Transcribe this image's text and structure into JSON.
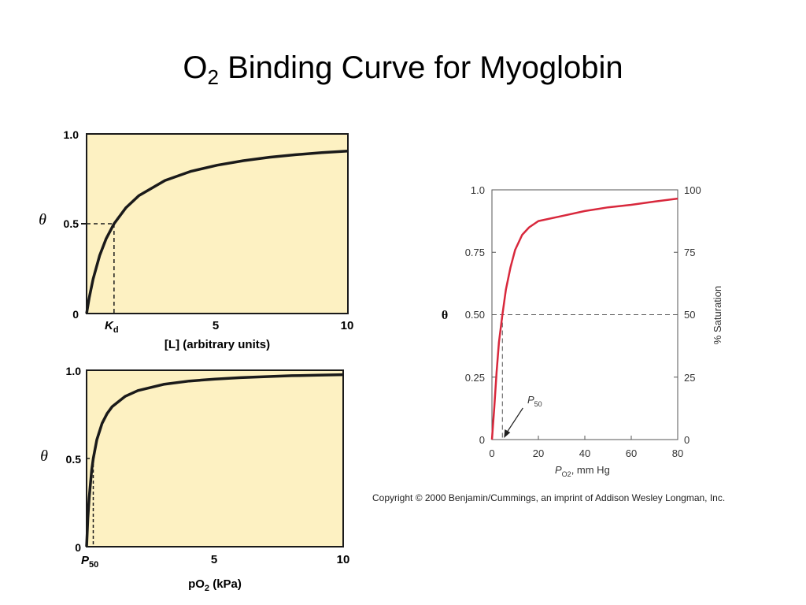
{
  "slide": {
    "title_main": "O",
    "title_sub": "2",
    "title_rest": " Binding Curve for Myoglobin",
    "copyright": "Copyright © 2000 Benjamin/Cummings, an imprint of Addison Wesley Longman, Inc."
  },
  "chart_data": [
    {
      "type": "line",
      "title": "",
      "ylabel": "θ",
      "xlabel": "[L] (arbitrary units)",
      "xlim": [
        0,
        10
      ],
      "ylim": [
        0,
        1
      ],
      "x_ticks": [
        0,
        5,
        10
      ],
      "x_tick_labels": [
        "",
        "5",
        "10"
      ],
      "y_tick_labels": [
        "0",
        "0.5",
        "1.0"
      ],
      "kd_label": "K",
      "kd_sub": "d",
      "Kd": 1.05,
      "background": "#fdf1c2",
      "line_color": "#1a1a1a",
      "series": [
        {
          "x": [
            0,
            0.1,
            0.25,
            0.5,
            0.75,
            1.05,
            1.5,
            2,
            3,
            4,
            5,
            6,
            7,
            8,
            9,
            10
          ],
          "y": [
            0,
            0.087,
            0.192,
            0.323,
            0.417,
            0.5,
            0.588,
            0.656,
            0.741,
            0.792,
            0.826,
            0.851,
            0.87,
            0.884,
            0.896,
            0.905
          ]
        }
      ]
    },
    {
      "type": "line",
      "title": "",
      "ylabel": "θ",
      "xlabel_main": "pO",
      "xlabel_sub": "2",
      "xlabel_rest": " (kPa)",
      "xlim": [
        0,
        10
      ],
      "ylim": [
        0,
        1
      ],
      "x_ticks": [
        0,
        5,
        10
      ],
      "x_tick_labels": [
        "",
        "5",
        "10"
      ],
      "y_tick_labels": [
        "0",
        "0.5",
        "1.0"
      ],
      "p50_label": "P",
      "p50_sub": "50",
      "P50": 0.26,
      "background": "#fdf1c2",
      "line_color": "#1a1a1a",
      "series": [
        {
          "x": [
            0,
            0.05,
            0.1,
            0.2,
            0.26,
            0.4,
            0.6,
            0.8,
            1,
            1.5,
            2,
            3,
            4,
            5,
            6,
            7,
            8,
            9,
            10
          ],
          "y": [
            0,
            0.161,
            0.278,
            0.435,
            0.5,
            0.606,
            0.698,
            0.755,
            0.794,
            0.852,
            0.885,
            0.92,
            0.939,
            0.95,
            0.958,
            0.964,
            0.969,
            0.972,
            0.975
          ]
        }
      ]
    },
    {
      "type": "line",
      "title": "",
      "ylabel": "θ",
      "ylabel_right": "% Saturation",
      "xlabel_main": "P",
      "xlabel_sub": "O2",
      "xlabel_rest": ", mm Hg",
      "xlim": [
        0,
        80
      ],
      "ylim": [
        0,
        1
      ],
      "x_ticks": [
        0,
        20,
        40,
        60,
        80
      ],
      "x_tick_labels": [
        "0",
        "20",
        "40",
        "60",
        "80"
      ],
      "y_ticks": [
        0,
        0.25,
        0.5,
        0.75,
        1.0
      ],
      "y_tick_labels": [
        "0",
        "0.25",
        "0.50",
        "0.75",
        "1.0"
      ],
      "y_right_tick_labels": [
        "0",
        "25",
        "50",
        "75",
        "100"
      ],
      "p50_label": "P",
      "p50_sub": "50",
      "P50": 4.5,
      "background": "#ffffff",
      "line_color": "#d8283c",
      "series": [
        {
          "x": [
            0,
            1,
            2,
            3,
            4.5,
            6,
            8,
            10,
            13,
            16,
            20,
            30,
            40,
            50,
            60,
            70,
            80
          ],
          "y": [
            0,
            0.13,
            0.27,
            0.39,
            0.5,
            0.6,
            0.69,
            0.76,
            0.82,
            0.85,
            0.875,
            0.895,
            0.915,
            0.93,
            0.94,
            0.953,
            0.965
          ]
        }
      ]
    }
  ]
}
